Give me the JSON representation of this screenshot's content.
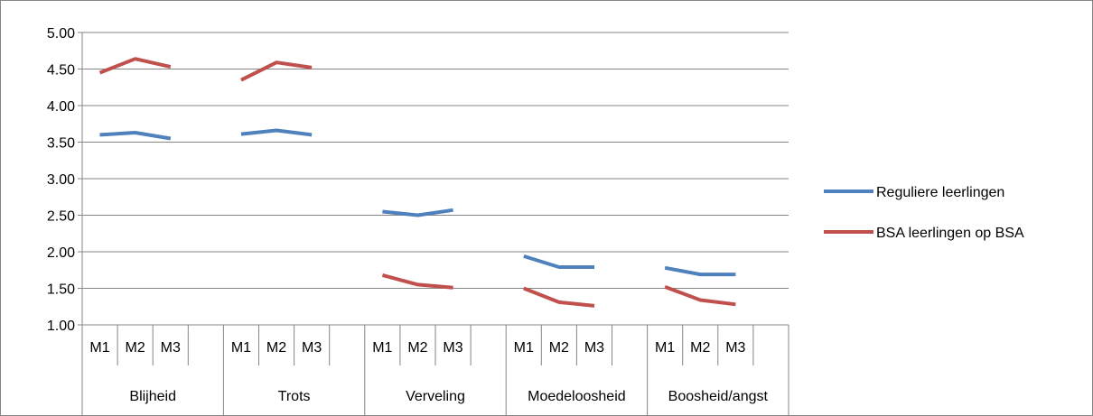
{
  "chart_data": {
    "type": "line",
    "title": "",
    "xlabel": "",
    "ylabel": "",
    "ylim": [
      1.0,
      5.0
    ],
    "yticks": [
      "1.00",
      "1.50",
      "2.00",
      "2.50",
      "3.00",
      "3.50",
      "4.00",
      "4.50",
      "5.00"
    ],
    "grid": true,
    "legend_position": "right",
    "groups": [
      "Blijheid",
      "Trots",
      "Verveling",
      "Moedeloosheid",
      "Boosheid/angst"
    ],
    "subcategories": [
      "M1",
      "M2",
      "M3"
    ],
    "series": [
      {
        "name": "Reguliere leerlingen",
        "color": "#4F81BD",
        "values": [
          [
            3.6,
            3.63,
            3.55
          ],
          [
            3.61,
            3.66,
            3.6
          ],
          [
            2.55,
            2.5,
            2.57
          ],
          [
            1.94,
            1.79,
            1.79
          ],
          [
            1.78,
            1.69,
            1.69
          ]
        ]
      },
      {
        "name": "BSA leerlingen op BSA",
        "color": "#C0504D",
        "values": [
          [
            4.45,
            4.64,
            4.53
          ],
          [
            4.35,
            4.59,
            4.52
          ],
          [
            1.68,
            1.55,
            1.51
          ],
          [
            1.5,
            1.31,
            1.26
          ],
          [
            1.52,
            1.34,
            1.28
          ]
        ]
      }
    ]
  }
}
